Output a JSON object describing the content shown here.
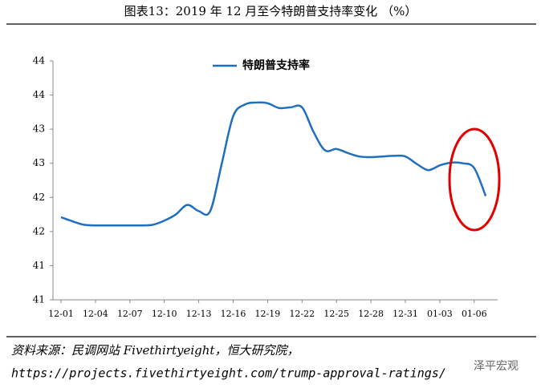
{
  "chart_data": {
    "type": "line",
    "title": "图表13：2019 年 12 月至今特朗普支持率变化 （%）",
    "categories": [
      "12-01",
      null,
      null,
      "12-04",
      null,
      null,
      "12-07",
      null,
      null,
      "12-10",
      null,
      null,
      "12-13",
      null,
      null,
      "12-16",
      null,
      null,
      "12-19",
      null,
      null,
      "12-22",
      null,
      null,
      "12-25",
      null,
      null,
      "12-28",
      null,
      null,
      "12-31",
      null,
      null,
      "01-03",
      null,
      null,
      "01-06",
      null
    ],
    "series": [
      {
        "name": "特朗普支持率",
        "color": "#1f6fbf",
        "values": [
          41.71,
          41.65,
          41.6,
          41.59,
          41.59,
          41.59,
          41.59,
          41.59,
          41.6,
          41.66,
          41.75,
          41.89,
          41.8,
          41.8,
          42.49,
          43.19,
          43.36,
          43.39,
          43.38,
          43.31,
          43.32,
          43.32,
          42.96,
          42.69,
          42.71,
          42.65,
          42.6,
          42.59,
          42.6,
          42.61,
          42.6,
          42.49,
          42.4,
          42.47,
          42.51,
          42.5,
          42.43,
          42.02
        ]
      }
    ],
    "ylim": [
      40.5,
      44
    ],
    "yticks": [
      {
        "value": 40.5,
        "label": "41"
      },
      41,
      {
        "value": 41.5,
        "label": "42"
      },
      42,
      {
        "value": 42.5,
        "label": "43"
      },
      43,
      {
        "value": 43.5,
        "label": "44"
      },
      44
    ],
    "legend": "top-center",
    "source": "资料来源：民调网站 Fivethirtyeight，恒大研究院，",
    "url": "https://projects.fivethirtyeight.com/trump-approval-ratings/",
    "watermark": "泽平宏观"
  }
}
